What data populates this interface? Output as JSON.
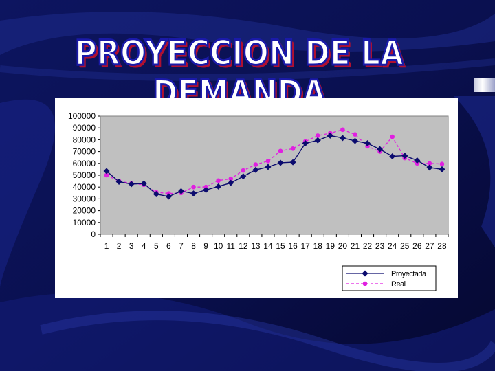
{
  "slide": {
    "title": "PROYECCION DE LA DEMANDA"
  },
  "colors": {
    "background": "#0a0f4a",
    "title_fill": "#ffffff",
    "title_outline": "#1a1aa8",
    "title_shadow": "#b01030",
    "plot_area": "#c0c0c0",
    "series_proyectada": "#0b0b6e",
    "series_real": "#e020e0"
  },
  "chart_data": {
    "type": "line",
    "title": "",
    "xlabel": "",
    "ylabel": "",
    "ylim": [
      0,
      100000
    ],
    "yticks": [
      0,
      10000,
      20000,
      30000,
      40000,
      50000,
      60000,
      70000,
      80000,
      90000,
      100000
    ],
    "grid": false,
    "legend_position": "bottom-right",
    "x": [
      1,
      2,
      3,
      4,
      5,
      6,
      7,
      8,
      9,
      10,
      11,
      12,
      13,
      14,
      15,
      16,
      17,
      18,
      19,
      20,
      21,
      22,
      23,
      24,
      25,
      26,
      27,
      28
    ],
    "series": [
      {
        "name": "Proyectada",
        "marker": "diamond",
        "line_style": "solid",
        "color": "#0b0b6e",
        "values": [
          53500,
          44500,
          42500,
          43000,
          34000,
          32000,
          36500,
          34500,
          37500,
          40500,
          43500,
          49000,
          54500,
          57000,
          60500,
          61000,
          77000,
          79500,
          83500,
          81500,
          79000,
          77000,
          72000,
          66000,
          66500,
          62500,
          56500,
          55000
        ]
      },
      {
        "name": "Real",
        "marker": "circle",
        "line_style": "dashed",
        "color": "#e020e0",
        "values": [
          50000,
          45000,
          43000,
          42000,
          35500,
          34500,
          35000,
          40000,
          40000,
          45500,
          47000,
          54000,
          59000,
          62000,
          70500,
          72500,
          78500,
          83500,
          85500,
          88500,
          84500,
          74500,
          70000,
          82500,
          64500,
          60000,
          60000,
          59500
        ]
      }
    ]
  }
}
